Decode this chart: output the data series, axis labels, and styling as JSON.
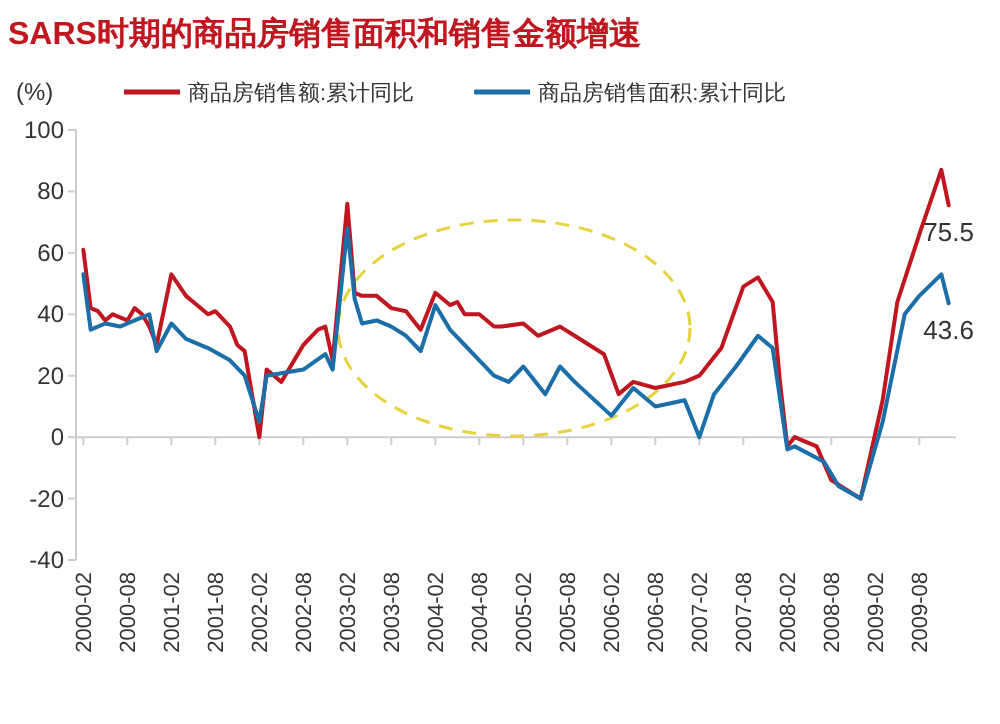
{
  "chart_data": {
    "type": "line",
    "title": "SARS时期的商品房销售面积和销售金额增速",
    "ylabel": "(%)",
    "legend": "top",
    "marker": "none",
    "line_style": "solid",
    "xlim": [
      "2000-01",
      "2010-01"
    ],
    "ylim": [
      -40,
      100
    ],
    "yticks": [
      -40,
      -20,
      0,
      20,
      40,
      60,
      80,
      100
    ],
    "xticks": [
      "2000-02",
      "2000-08",
      "2001-02",
      "2001-08",
      "2002-02",
      "2002-08",
      "2003-02",
      "2003-08",
      "2004-02",
      "2004-08",
      "2005-02",
      "2005-08",
      "2006-02",
      "2006-08",
      "2007-02",
      "2007-08",
      "2008-02",
      "2008-08",
      "2009-02",
      "2009-08"
    ],
    "series": [
      {
        "name": "商品房销售额:累计同比",
        "color": "#c0161f",
        "x": [
          "2000-02",
          "2000-03",
          "2000-04",
          "2000-05",
          "2000-06",
          "2000-08",
          "2000-09",
          "2000-10",
          "2000-11",
          "2000-12",
          "2001-02",
          "2001-04",
          "2001-05",
          "2001-07",
          "2001-08",
          "2001-10",
          "2001-11",
          "2001-12",
          "2002-02",
          "2002-03",
          "2002-05",
          "2002-08",
          "2002-10",
          "2002-11",
          "2002-12",
          "2003-02",
          "2003-03",
          "2003-04",
          "2003-06",
          "2003-08",
          "2003-10",
          "2003-12",
          "2004-02",
          "2004-04",
          "2004-05",
          "2004-06",
          "2004-08",
          "2004-10",
          "2004-11",
          "2005-02",
          "2005-04",
          "2005-07",
          "2005-09",
          "2006-01",
          "2006-03",
          "2006-05",
          "2006-08",
          "2006-12",
          "2007-02",
          "2007-05",
          "2007-08",
          "2007-10",
          "2007-12",
          "2008-01",
          "2008-02",
          "2008-03",
          "2008-06",
          "2008-08",
          "2008-12",
          "2009-03",
          "2009-05",
          "2009-08",
          "2009-11",
          "2009-12"
        ],
        "values": [
          61,
          42,
          41,
          38,
          40,
          38,
          42,
          40,
          36,
          30,
          53,
          46,
          44,
          40,
          41,
          36,
          30,
          28,
          0,
          22,
          18,
          30,
          35,
          36,
          25,
          76,
          47,
          46,
          46,
          42,
          41,
          35,
          47,
          43,
          44,
          40,
          40,
          36,
          36,
          37,
          33,
          36,
          33,
          27,
          14,
          18,
          16,
          18,
          20,
          29,
          49,
          52,
          44,
          18,
          -3,
          0,
          -3,
          -14,
          -20,
          12,
          44,
          66,
          87,
          75.5
        ]
      },
      {
        "name": "商品房销售面积:累计同比",
        "color": "#1a6fa8",
        "x": [
          "2000-02",
          "2000-03",
          "2000-05",
          "2000-07",
          "2000-09",
          "2000-11",
          "2000-12",
          "2001-02",
          "2001-04",
          "2001-07",
          "2001-10",
          "2001-12",
          "2002-02",
          "2002-03",
          "2002-08",
          "2002-11",
          "2002-12",
          "2003-02",
          "2003-03",
          "2003-04",
          "2003-06",
          "2003-08",
          "2003-10",
          "2003-12",
          "2004-02",
          "2004-04",
          "2004-06",
          "2004-08",
          "2004-10",
          "2004-12",
          "2005-02",
          "2005-05",
          "2005-07",
          "2005-09",
          "2006-02",
          "2006-05",
          "2006-08",
          "2006-12",
          "2007-02",
          "2007-04",
          "2007-07",
          "2007-10",
          "2007-12",
          "2008-02",
          "2008-03",
          "2008-07",
          "2008-09",
          "2008-12",
          "2009-03",
          "2009-06",
          "2009-08",
          "2009-11",
          "2009-12"
        ],
        "values": [
          53,
          35,
          37,
          36,
          38,
          40,
          28,
          37,
          32,
          29,
          25,
          20,
          5,
          20,
          22,
          27,
          22,
          68,
          45,
          37,
          38,
          36,
          33,
          28,
          43,
          35,
          30,
          25,
          20,
          18,
          23,
          14,
          23,
          18,
          7,
          16,
          10,
          12,
          0,
          14,
          23,
          33,
          29,
          -4,
          -3,
          -8,
          -16,
          -20,
          5,
          40,
          46,
          53,
          43.6
        ]
      }
    ],
    "annotations": [
      {
        "text": "75.5",
        "x": "2009-12",
        "y": 75.5
      },
      {
        "text": "43.6",
        "x": "2009-12",
        "y": 43.6
      }
    ]
  }
}
